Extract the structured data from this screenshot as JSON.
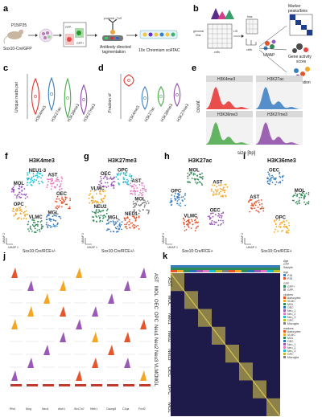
{
  "panel_a": {
    "letter": "a",
    "age": "P15/P25",
    "mouse": "Sox10-Cre/GFP",
    "gfp_minus": "GFP-",
    "gfp_plus": "GFP+",
    "tn5_label": "proteinA - Tn5",
    "step1": "Antibody directed",
    "step2": "tagmentation",
    "step3": "10x Chromium scATAC"
  },
  "panel_b": {
    "letter": "b",
    "genomic": "genomic",
    "bins": "bins",
    "cells": "cells",
    "bins_small": "bins",
    "cells_small": "cells",
    "lsi": "LSI",
    "umap": "UMAP",
    "marker": "Marker\npeaks/bins",
    "gene_activity": "Gene activity\nscore",
    "integration": "Integration"
  },
  "panel_c": {
    "letter": "c",
    "ylabel": "Unique reads per\ncell [log10]",
    "categories": [
      "H3K4me3",
      "H3K27ac",
      "H3K36me3",
      "H3K27me3"
    ],
    "colors": [
      "#e8312f",
      "#3a7ec2",
      "#4aa84a",
      "#8e4aa8"
    ]
  },
  "panel_d": {
    "letter": "d",
    "ylabel": "Fraction of\nfragments in peaks",
    "categories": [
      "H3K4me3",
      "H3K27ac",
      "H3K36me3",
      "H3K27me3"
    ]
  },
  "panel_e": {
    "letter": "e",
    "ylabel": "count",
    "xlabel": "size [bp]",
    "facets": [
      "H3K4me3",
      "H3K27ac",
      "H3K36me3",
      "H3K27me3"
    ]
  },
  "umaps": [
    {
      "letter": "f",
      "title": "H3K4me3",
      "caption": "Sox10:Cre/RCE+/-",
      "clusters": [
        "OEC",
        "MGL",
        "VLMC",
        "OPC",
        "MOL",
        "NEU1-3",
        "AST"
      ]
    },
    {
      "letter": "g",
      "title": "H3K27me3",
      "caption": "Sox10:Cre/RCE+/-",
      "clusters": [
        "NEU1",
        "MGL",
        "NEU2",
        "VLMC",
        "OEC",
        "OPC",
        "AST",
        "MOL"
      ]
    },
    {
      "letter": "h",
      "title": "H3K27ac",
      "caption": "Sox10:Cre/RCE+",
      "clusters": [
        "VLMC",
        "OPC",
        "MOL",
        "AST",
        "OEC"
      ]
    },
    {
      "letter": "i",
      "title": "H3K36me3",
      "caption": "Sox10:Cre/RCE+",
      "clusters": [
        "AST",
        "OEC",
        "MOL",
        "OPC"
      ]
    }
  ],
  "axes": {
    "umap1": "UMAP 1",
    "umap2": "UMAP 2"
  },
  "panel_j": {
    "letter": "j",
    "rows": [
      "AST",
      "MOL",
      "OEC",
      "OPC",
      "Neu1",
      "Neu2",
      "Neu3",
      "VLMC",
      "MGL"
    ],
    "genes": [
      "Rfx4",
      "Mog",
      "Neu4",
      "Atoh1",
      "Slc17a7",
      "Nhlh1",
      "Cacng5",
      "C1qa",
      "Foxf2"
    ]
  },
  "panel_k": {
    "letter": "k",
    "row_clusters": [
      "AST",
      "MOL",
      "Neu1",
      "Neu2",
      "Neu3",
      "OEC",
      "OPC",
      "MGL"
    ],
    "legend_headers": [
      "Age",
      "GFP",
      "Sample"
    ],
    "age_title": "Age",
    "age_items": [
      "P15",
      "P25"
    ],
    "gfp_title": "GFP",
    "gfp_items": [
      "GFP+",
      "GFP-"
    ],
    "clusters_title": "clusters",
    "cluster_items": [
      "Astrocytes",
      "VLMC",
      "MOL",
      "OEC",
      "Neu_1",
      "Neu_2",
      "Neu_3",
      "OPC",
      "Microglia"
    ],
    "markers_title": "markers",
    "marker_items": [
      "Astrocytes",
      "VLMC",
      "MOL",
      "OEC",
      "Neu_1",
      "Neu_2",
      "Neu_3",
      "OPC",
      "Microglia"
    ],
    "legend_colors": [
      "#e6542c",
      "#f5a623",
      "#2e8b57",
      "#1f77b4",
      "#9b59b6",
      "#e377c2",
      "#17becf",
      "#bcbd22",
      "#7f7f7f"
    ]
  }
}
